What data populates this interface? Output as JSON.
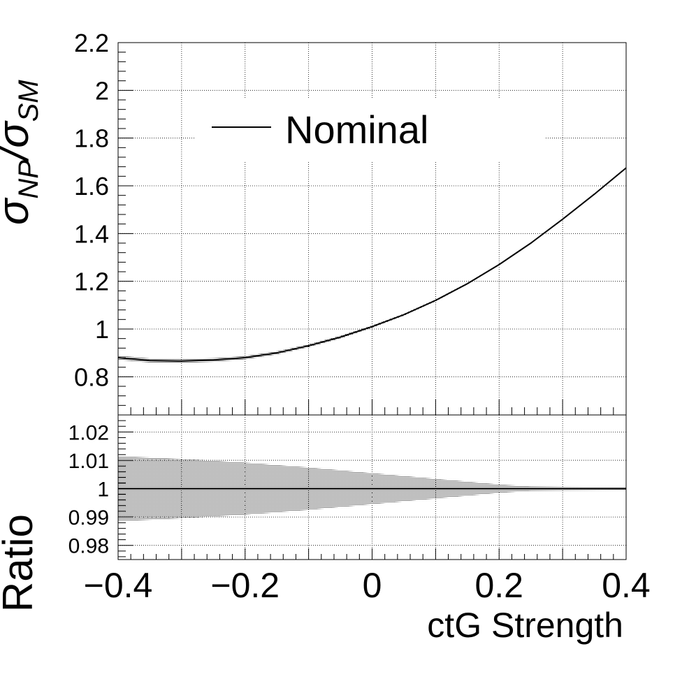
{
  "chart_data": [
    {
      "type": "line",
      "panel": "main",
      "ylabel": {
        "main": "σ",
        "sub1": "NP",
        "sep": "/",
        "main2": "σ",
        "sub2": "SM"
      },
      "xlim": [
        -0.4,
        0.4
      ],
      "ylim": [
        0.64,
        2.2
      ],
      "grid": true,
      "legend_placement": "top-center",
      "y_tick_labels": [
        "0.8",
        "1",
        "1.2",
        "1.4",
        "1.6",
        "1.8",
        "2",
        "2.2"
      ],
      "y_ticks": [
        0.8,
        1.0,
        1.2,
        1.4,
        1.6,
        1.8,
        2.0,
        2.2
      ],
      "series": [
        {
          "name": "Nominal",
          "x": [
            -0.4,
            -0.35,
            -0.3,
            -0.25,
            -0.2,
            -0.15,
            -0.1,
            -0.05,
            0.0,
            0.05,
            0.1,
            0.15,
            0.2,
            0.25,
            0.3,
            0.35,
            0.4
          ],
          "y": [
            0.88,
            0.868,
            0.866,
            0.87,
            0.88,
            0.9,
            0.93,
            0.966,
            1.01,
            1.06,
            1.12,
            1.19,
            1.27,
            1.36,
            1.46,
            1.565,
            1.675
          ],
          "band_halfwidth": [
            0.01,
            0.009,
            0.0085,
            0.008,
            0.0075,
            0.007,
            0.0065,
            0.006,
            0.005,
            0.0045,
            0.004,
            0.0035,
            0.003,
            0.0025,
            0.002,
            0.002,
            0.002
          ]
        }
      ]
    },
    {
      "type": "line",
      "panel": "ratio",
      "xlabel": "ctG Strength",
      "ylabel": "Ratio",
      "xlim": [
        -0.4,
        0.4
      ],
      "ylim": [
        0.975,
        1.026
      ],
      "grid": true,
      "x_ticks": [
        -0.4,
        -0.2,
        0.0,
        0.2,
        0.4
      ],
      "x_tick_labels": [
        "−0.4",
        "−0.2",
        "0",
        "0.2",
        "0.4"
      ],
      "y_ticks": [
        0.98,
        0.99,
        1.0,
        1.01,
        1.02
      ],
      "y_tick_labels": [
        "0.98",
        "0.99",
        "1",
        "1.01",
        "1.02"
      ],
      "series": [
        {
          "name": "",
          "x": [
            -0.4,
            -0.3,
            -0.2,
            -0.1,
            0.0,
            0.1,
            0.2,
            0.25,
            0.3,
            0.4
          ],
          "y": [
            1.0,
            1.0,
            1.0,
            1.0,
            1.0,
            1.0,
            1.0,
            1.0,
            1.0,
            1.0
          ],
          "band_halfwidth": [
            0.0115,
            0.0105,
            0.0092,
            0.0075,
            0.0055,
            0.0035,
            0.0015,
            0.0008,
            0.0007,
            0.0006
          ]
        }
      ]
    }
  ]
}
